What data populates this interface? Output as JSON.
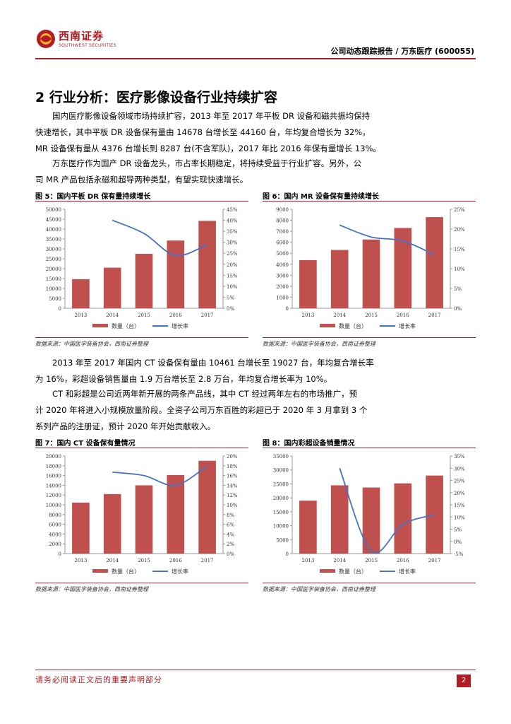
{
  "header": {
    "brand": "西南证券",
    "brand_en": "SOUTHWEST SECURITIES",
    "right_title": "公司动态跟踪报告 / 万东医疗 (600055)"
  },
  "section": {
    "title": "2 行业分析：医疗影像设备行业持续扩容"
  },
  "paragraphs": {
    "p1_line1": "国内医疗影像设备领域市场持续扩容，2013 年至 2017 年平板 DR 设备和磁共振均保持",
    "p1_line2": "快速增长，其中平板 DR 设备保有量由 14678 台增长至 44160 台，年均复合增长为 32%，",
    "p1_line3": "MR 设备保有量从 4376 台增长到 8287 台(不含军队)，2017 年比 2016 年保有量增长 13%。",
    "p2_line1": "万东医疗作为国产 DR 设备龙头，市占率长期稳定，将持续受益于行业扩容。另外，公",
    "p2_line2": "司 MR 产品包括永磁和超导两种类型，有望实现快速增长。",
    "p3_line1": "2013 年至 2017 年国内 CT 设备保有量由 10461 台增长至 19027 台，年均复合增长率",
    "p3_line2": "为 16%，彩超设备销售量由 1.9 万台增长至 2.8 万台，年均复合增长率为 10%。",
    "p4_line1": "CT 和彩超是公司近两年新开展的两条产品线，其中 CT 经过两年左右的市场推广，预",
    "p4_line2": "计 2020 年将进入小规模放量阶段。全资子公司万东百胜的彩超已于 2020 年 3 月拿到 3 个",
    "p4_line3": "系列产品的注册证，预计 2020 年开始贡献收入。"
  },
  "figures": {
    "fig5_title": "图 5：国内平板 DR 保有量持续增长",
    "fig6_title": "图 6：国内 MR 设备保有量持续增长",
    "fig7_title": "图 7：国内 CT 设备保有量情况",
    "fig8_title": "图 8：国内彩超设备销量情况",
    "source": "数据来源：中国医学装备协会，西南证券整理"
  },
  "legend": {
    "bar": "数量（台）",
    "line": "增长率"
  },
  "colors": {
    "accent": "#b31c22",
    "bar": "#c0504d",
    "line": "#4472c4"
  },
  "footer": {
    "disclaimer": "请务必阅读正文后的重要声明部分",
    "page": "2"
  },
  "chart_data": [
    {
      "type": "bar",
      "title": "图 5：国内平板 DR 保有量持续增长",
      "categories": [
        "2013",
        "2014",
        "2015",
        "2016",
        "2017"
      ],
      "series": [
        {
          "name": "数量（台）",
          "type": "bar",
          "axis": "left",
          "values": [
            14678,
            20500,
            27500,
            34200,
            44160
          ]
        },
        {
          "name": "增长率",
          "type": "line",
          "axis": "right",
          "values": [
            null,
            0.4,
            0.34,
            0.24,
            0.29
          ]
        }
      ],
      "ylim": [
        0,
        50000
      ],
      "yticks": [
        0,
        5000,
        10000,
        15000,
        20000,
        25000,
        30000,
        35000,
        40000,
        45000,
        50000
      ],
      "ylim_right": [
        0,
        0.45
      ],
      "yticks_right": [
        "0%",
        "5%",
        "10%",
        "15%",
        "20%",
        "25%",
        "30%",
        "35%",
        "40%",
        "45%"
      ],
      "legend": "bottom"
    },
    {
      "type": "bar",
      "title": "图 6：国内 MR 设备保有量持续增长",
      "categories": [
        "2013",
        "2014",
        "2015",
        "2016",
        "2017"
      ],
      "series": [
        {
          "name": "数量（台）",
          "type": "bar",
          "axis": "left",
          "values": [
            4376,
            5300,
            6250,
            7300,
            8287
          ]
        },
        {
          "name": "增长率",
          "type": "line",
          "axis": "right",
          "values": [
            null,
            0.21,
            0.18,
            0.17,
            0.135
          ]
        }
      ],
      "ylim": [
        0,
        9000
      ],
      "yticks": [
        0,
        1000,
        2000,
        3000,
        4000,
        5000,
        6000,
        7000,
        8000,
        9000
      ],
      "ylim_right": [
        0,
        0.25
      ],
      "yticks_right": [
        "0%",
        "5%",
        "10%",
        "15%",
        "20%",
        "25%"
      ],
      "legend": "bottom"
    },
    {
      "type": "bar",
      "title": "图 7：国内 CT 设备保有量情况",
      "categories": [
        "2013",
        "2014",
        "2015",
        "2016",
        "2017"
      ],
      "series": [
        {
          "name": "数量（台）",
          "type": "bar",
          "axis": "left",
          "values": [
            10461,
            12200,
            14000,
            16100,
            19027
          ]
        },
        {
          "name": "增长率",
          "type": "line",
          "axis": "right",
          "values": [
            null,
            0.167,
            0.16,
            0.14,
            0.18
          ]
        }
      ],
      "ylim": [
        0,
        20000
      ],
      "yticks": [
        0,
        2000,
        4000,
        6000,
        8000,
        10000,
        12000,
        14000,
        16000,
        18000,
        20000
      ],
      "ylim_right": [
        0,
        0.2
      ],
      "yticks_right": [
        "0%",
        "2%",
        "4%",
        "6%",
        "8%",
        "10%",
        "12%",
        "14%",
        "16%",
        "18%",
        "20%"
      ],
      "legend": "bottom"
    },
    {
      "type": "bar",
      "title": "图 8：国内彩超设备销量情况",
      "categories": [
        "2013",
        "2014",
        "2015",
        "2016",
        "2017"
      ],
      "series": [
        {
          "name": "数量（台）",
          "type": "bar",
          "axis": "left",
          "values": [
            19000,
            24500,
            23700,
            25200,
            28000
          ]
        },
        {
          "name": "增长率",
          "type": "line",
          "axis": "right",
          "values": [
            null,
            0.3,
            -0.04,
            0.07,
            0.11
          ]
        }
      ],
      "ylim": [
        0,
        35000
      ],
      "yticks": [
        0,
        5000,
        10000,
        15000,
        20000,
        25000,
        30000,
        35000
      ],
      "ylim_right": [
        -0.05,
        0.35
      ],
      "yticks_right": [
        "-5%",
        "0%",
        "5%",
        "10%",
        "15%",
        "20%",
        "25%",
        "30%",
        "35%"
      ],
      "legend": "bottom"
    }
  ]
}
